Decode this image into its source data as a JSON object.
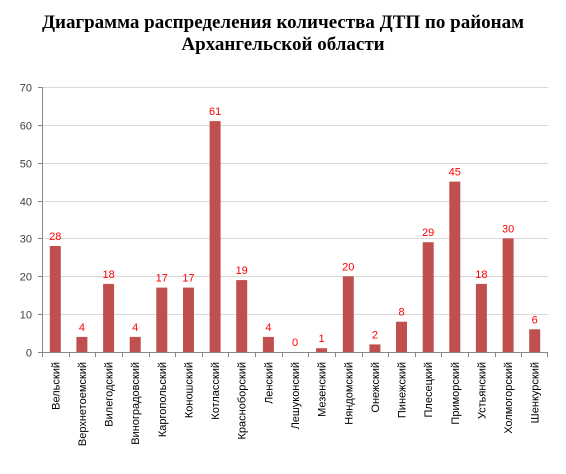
{
  "title": {
    "line1": "Диаграмма распределения количества ДТП по районам",
    "line2": "Архангельской области"
  },
  "colors": {
    "bar": "#c0504d",
    "data_label": "#ff0000",
    "grid": "#d9d9d9",
    "axis": "#868686"
  },
  "chart_data": {
    "type": "bar",
    "title": "Диаграмма распределения количества ДТП по районам Архангельской области",
    "xlabel": "",
    "ylabel": "",
    "ylim": [
      0,
      70
    ],
    "yticks": [
      0,
      10,
      20,
      30,
      40,
      50,
      60,
      70
    ],
    "grid": true,
    "legend": "none",
    "categories": [
      "Вельский",
      "Верхнетоемский",
      "Вилегодский",
      "Виноградовский",
      "Каргопольский",
      "Коношский",
      "Котласский",
      "Красноборский",
      "Ленский",
      "Лешуконский",
      "Мезенский",
      "Няндомский",
      "Онежский",
      "Пинежский",
      "Плесецкий",
      "Приморский",
      "Устьянский",
      "Холмогорский",
      "Шенкурский"
    ],
    "values": [
      28,
      4,
      18,
      4,
      17,
      17,
      61,
      19,
      4,
      0,
      1,
      20,
      2,
      8,
      29,
      45,
      18,
      30,
      6
    ]
  }
}
